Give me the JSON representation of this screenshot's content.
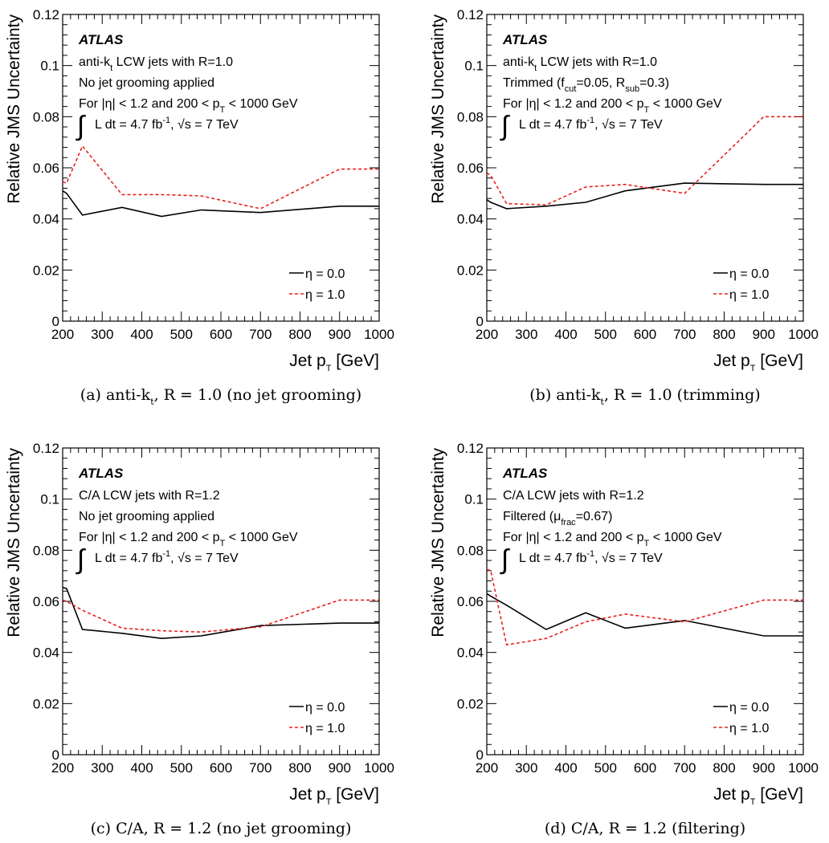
{
  "chart_data": [
    {
      "type": "line",
      "caption": "(a) anti-k_t, R = 1.0 (no jet grooming)",
      "caption_parts": [
        "(a) anti-",
        "k",
        "t",
        ", ",
        "R",
        " = 1.0 (no jet grooming)"
      ],
      "ylabel": "Relative JMS Uncertainty",
      "xlabel": "Jet p_T [GeV]",
      "xlim": [
        200,
        1000
      ],
      "ylim": [
        0,
        0.12
      ],
      "xticks": [
        "200",
        "300",
        "400",
        "500",
        "600",
        "700",
        "800",
        "900",
        "1000"
      ],
      "yticks": [
        "0",
        "0.02",
        "0.04",
        "0.06",
        "0.08",
        "0.1",
        "0.12"
      ],
      "annotations": {
        "atlas": "ATLAS",
        "line1": "anti-k_t LCW jets with R=1.0",
        "line2": "No jet grooming applied",
        "line3": "For |η| < 1.2 and 200 < p_T < 1000 GeV",
        "lumi": "∫ L dt = 4.7 fb^-1, √s = 7 TeV"
      },
      "legend": [
        "η = 0.0",
        "η = 1.0"
      ],
      "series": [
        {
          "name": "η = 0.0",
          "color": "#000000",
          "style": "solid",
          "x": [
            200,
            210,
            250,
            350,
            450,
            550,
            700,
            900,
            1000
          ],
          "y": [
            0.051,
            0.05,
            0.0415,
            0.0445,
            0.041,
            0.0435,
            0.0425,
            0.045,
            0.045
          ]
        },
        {
          "name": "η = 1.0",
          "color": "#e8211d",
          "style": "dashed",
          "x": [
            200,
            210,
            250,
            350,
            450,
            550,
            700,
            900,
            1000
          ],
          "y": [
            0.0545,
            0.054,
            0.0685,
            0.0495,
            0.0495,
            0.049,
            0.044,
            0.0595,
            0.0595
          ]
        }
      ]
    },
    {
      "type": "line",
      "caption": "(b) anti-k_t, R = 1.0 (trimming)",
      "ylabel": "Relative JMS Uncertainty",
      "xlabel": "Jet p_T [GeV]",
      "xlim": [
        200,
        1000
      ],
      "ylim": [
        0,
        0.12
      ],
      "xticks": [
        "200",
        "300",
        "400",
        "500",
        "600",
        "700",
        "800",
        "900",
        "1000"
      ],
      "yticks": [
        "0",
        "0.02",
        "0.04",
        "0.06",
        "0.08",
        "0.1",
        "0.12"
      ],
      "annotations": {
        "atlas": "ATLAS",
        "line1": "anti-k_t LCW jets with R=1.0",
        "line2": "Trimmed (f_cut=0.05, R_sub=0.3)",
        "line3": "For |η| < 1.2 and 200 < p_T < 1000 GeV",
        "lumi": "∫ L dt = 4.7 fb^-1, √s = 7 TeV"
      },
      "legend": [
        "η = 0.0",
        "η = 1.0"
      ],
      "series": [
        {
          "name": "η = 0.0",
          "color": "#000000",
          "style": "solid",
          "x": [
            200,
            210,
            250,
            350,
            450,
            550,
            700,
            900,
            1000
          ],
          "y": [
            0.0475,
            0.0465,
            0.044,
            0.045,
            0.0465,
            0.051,
            0.054,
            0.0535,
            0.0535
          ]
        },
        {
          "name": "η = 1.0",
          "color": "#e8211d",
          "style": "dashed",
          "x": [
            200,
            210,
            250,
            350,
            450,
            550,
            700,
            900,
            1000
          ],
          "y": [
            0.058,
            0.057,
            0.046,
            0.0455,
            0.0525,
            0.0535,
            0.05,
            0.08,
            0.08
          ]
        }
      ]
    },
    {
      "type": "line",
      "caption": "(c) C/A, R = 1.2 (no jet grooming)",
      "ylabel": "Relative JMS Uncertainty",
      "xlabel": "Jet p_T [GeV]",
      "xlim": [
        200,
        1000
      ],
      "ylim": [
        0,
        0.12
      ],
      "xticks": [
        "200",
        "300",
        "400",
        "500",
        "600",
        "700",
        "800",
        "900",
        "1000"
      ],
      "yticks": [
        "0",
        "0.02",
        "0.04",
        "0.06",
        "0.08",
        "0.1",
        "0.12"
      ],
      "annotations": {
        "atlas": "ATLAS",
        "line1": "C/A LCW jets with R=1.2",
        "line2": "No jet grooming applied",
        "line3": "For |η| < 1.2 and 200 < p_T < 1000 GeV",
        "lumi": "∫ L dt = 4.7 fb^-1, √s = 7 TeV"
      },
      "legend": [
        "η = 0.0",
        "η = 1.0"
      ],
      "series": [
        {
          "name": "η = 0.0",
          "color": "#000000",
          "style": "solid",
          "x": [
            200,
            210,
            250,
            350,
            450,
            550,
            700,
            900,
            1000
          ],
          "y": [
            0.0655,
            0.065,
            0.049,
            0.0475,
            0.0455,
            0.0465,
            0.0505,
            0.0515,
            0.0515
          ]
        },
        {
          "name": "η = 1.0",
          "color": "#e8211d",
          "style": "dashed",
          "x": [
            200,
            210,
            250,
            350,
            450,
            550,
            700,
            900,
            1000
          ],
          "y": [
            0.0605,
            0.06,
            0.0565,
            0.0495,
            0.0485,
            0.048,
            0.05,
            0.0605,
            0.0605
          ]
        }
      ]
    },
    {
      "type": "line",
      "caption": "(d) C/A, R = 1.2 (filtering)",
      "ylabel": "Relative JMS Uncertainty",
      "xlabel": "Jet p_T [GeV]",
      "xlim": [
        200,
        1000
      ],
      "ylim": [
        0,
        0.12
      ],
      "xticks": [
        "200",
        "300",
        "400",
        "500",
        "600",
        "700",
        "800",
        "900",
        "1000"
      ],
      "yticks": [
        "0",
        "0.02",
        "0.04",
        "0.06",
        "0.08",
        "0.1",
        "0.12"
      ],
      "annotations": {
        "atlas": "ATLAS",
        "line1": "C/A LCW jets with R=1.2",
        "line2": "Filtered (μ_frac=0.67)",
        "line3": "For |η| < 1.2 and 200 < p_T < 1000 GeV",
        "lumi": "∫ L dt = 4.7 fb^-1, √s = 7 TeV"
      },
      "legend": [
        "η = 0.0",
        "η = 1.0"
      ],
      "series": [
        {
          "name": "η = 0.0",
          "color": "#000000",
          "style": "solid",
          "x": [
            200,
            210,
            250,
            350,
            450,
            550,
            700,
            900,
            1000
          ],
          "y": [
            0.063,
            0.062,
            0.0585,
            0.049,
            0.0555,
            0.0495,
            0.0525,
            0.0465,
            0.0465
          ]
        },
        {
          "name": "η = 1.0",
          "color": "#e8211d",
          "style": "dashed",
          "x": [
            200,
            210,
            250,
            350,
            450,
            550,
            700,
            900,
            1000
          ],
          "y": [
            0.0725,
            0.072,
            0.043,
            0.0455,
            0.052,
            0.055,
            0.052,
            0.0605,
            0.0605
          ]
        }
      ]
    }
  ]
}
